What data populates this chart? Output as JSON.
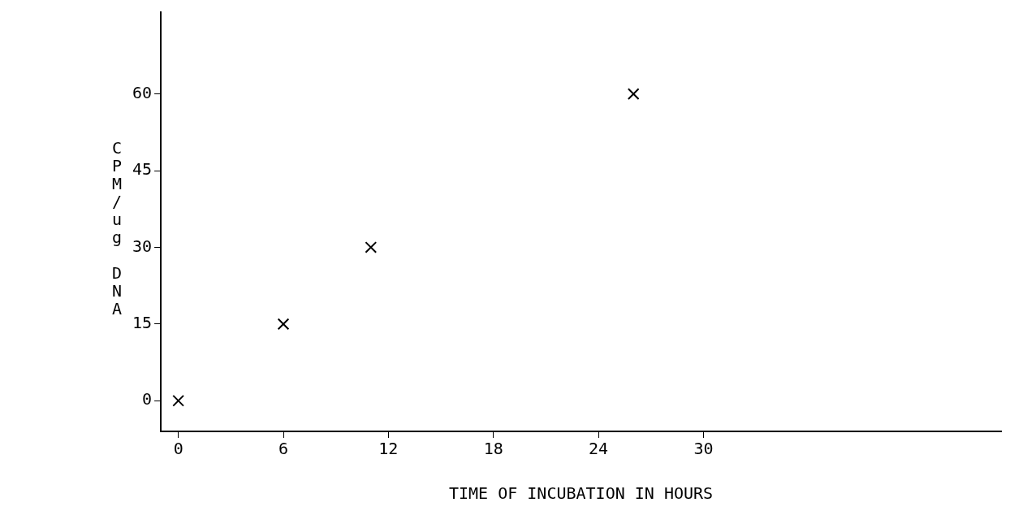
{
  "chart_data": {
    "type": "scatter",
    "xlabel": "TIME OF INCUBATION IN HOURS",
    "ylabel": "CPM/ug DNA",
    "x": [
      0,
      6,
      11,
      26
    ],
    "values": [
      0,
      15,
      30,
      60
    ],
    "color": "#000000",
    "marker": "cross",
    "xlim": [
      -1,
      47
    ],
    "xticks": [
      0,
      6,
      12,
      18,
      24,
      30
    ],
    "ylim": [
      -6,
      76
    ],
    "yticks": [
      0,
      15,
      30,
      45,
      60
    ],
    "grid": false,
    "legend": false
  }
}
